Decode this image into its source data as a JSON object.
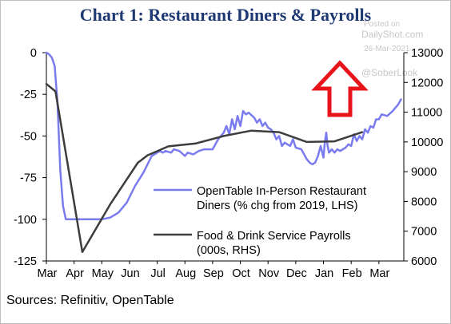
{
  "chart_title": "Chart 1: Restaurant Diners & Payrolls",
  "sources": "Sources: Refinitiv, OpenTable",
  "watermark": {
    "posted_on": "Posted on",
    "site": "DailyShot.com",
    "date": "26-Mar-2021",
    "handle": "@SoberLook"
  },
  "arrow_color": "#e8141b",
  "chart_data": {
    "type": "line",
    "x_ticks": [
      "Mar",
      "Apr",
      "May",
      "Jun",
      "Jul",
      "Aug",
      "Sep",
      "Oct",
      "Nov",
      "Dec",
      "Jan",
      "Feb",
      "Mar"
    ],
    "y_left": {
      "range": [
        -125,
        0
      ],
      "ticks": [
        0,
        -25,
        -50,
        -75,
        -100,
        -125
      ]
    },
    "y_right": {
      "range": [
        6000,
        13000
      ],
      "ticks": [
        6000,
        7000,
        8000,
        9000,
        10000,
        11000,
        12000,
        13000
      ]
    },
    "grid": false,
    "legend_position": "lower-right",
    "series": [
      {
        "name": "OpenTable In-Person Restaurant Diners (% chg from 2019, LHS)",
        "axis": "left",
        "color": "#7b7bf0",
        "points": [
          [
            0.0,
            0
          ],
          [
            0.1,
            -1
          ],
          [
            0.2,
            -3
          ],
          [
            0.3,
            -8
          ],
          [
            0.4,
            -30
          ],
          [
            0.5,
            -70
          ],
          [
            0.6,
            -92
          ],
          [
            0.7,
            -100
          ],
          [
            1.0,
            -100
          ],
          [
            1.5,
            -100
          ],
          [
            2.0,
            -100
          ],
          [
            2.3,
            -99
          ],
          [
            2.6,
            -96
          ],
          [
            2.9,
            -90
          ],
          [
            3.2,
            -80
          ],
          [
            3.5,
            -72
          ],
          [
            3.8,
            -62
          ],
          [
            4.0,
            -60
          ],
          [
            4.1,
            -59
          ],
          [
            4.2,
            -60
          ],
          [
            4.3,
            -59
          ],
          [
            4.5,
            -60
          ],
          [
            4.6,
            -58
          ],
          [
            4.8,
            -59
          ],
          [
            5.0,
            -62
          ],
          [
            5.1,
            -60
          ],
          [
            5.3,
            -61
          ],
          [
            5.5,
            -59
          ],
          [
            5.7,
            -58
          ],
          [
            6.0,
            -58
          ],
          [
            6.2,
            -52
          ],
          [
            6.4,
            -48
          ],
          [
            6.5,
            -44
          ],
          [
            6.6,
            -49
          ],
          [
            6.7,
            -40
          ],
          [
            6.8,
            -46
          ],
          [
            6.9,
            -38
          ],
          [
            7.0,
            -44
          ],
          [
            7.1,
            -35
          ],
          [
            7.2,
            -37
          ],
          [
            7.3,
            -36
          ],
          [
            7.5,
            -39
          ],
          [
            7.6,
            -42
          ],
          [
            7.7,
            -40
          ],
          [
            7.8,
            -44
          ],
          [
            7.9,
            -42
          ],
          [
            8.0,
            -45
          ],
          [
            8.1,
            -46
          ],
          [
            8.2,
            -48
          ],
          [
            8.3,
            -52
          ],
          [
            8.4,
            -50
          ],
          [
            8.5,
            -56
          ],
          [
            8.6,
            -54
          ],
          [
            8.8,
            -56
          ],
          [
            8.9,
            -52
          ],
          [
            9.0,
            -57
          ],
          [
            9.2,
            -58
          ],
          [
            9.3,
            -61
          ],
          [
            9.4,
            -64
          ],
          [
            9.5,
            -66
          ],
          [
            9.6,
            -67
          ],
          [
            9.7,
            -66
          ],
          [
            9.8,
            -62
          ],
          [
            9.9,
            -56
          ],
          [
            10.0,
            -63
          ],
          [
            10.05,
            -54
          ],
          [
            10.1,
            -48
          ],
          [
            10.15,
            -56
          ],
          [
            10.2,
            -60
          ],
          [
            10.3,
            -58
          ],
          [
            10.4,
            -60
          ],
          [
            10.5,
            -58
          ],
          [
            10.6,
            -59
          ],
          [
            10.8,
            -57
          ],
          [
            10.9,
            -55
          ],
          [
            11.0,
            -56
          ],
          [
            11.1,
            -49
          ],
          [
            11.2,
            -53
          ],
          [
            11.3,
            -50
          ],
          [
            11.4,
            -52
          ],
          [
            11.5,
            -46
          ],
          [
            11.6,
            -48
          ],
          [
            11.7,
            -44
          ],
          [
            11.8,
            -45
          ],
          [
            11.9,
            -40
          ],
          [
            12.0,
            -40
          ],
          [
            12.1,
            -37
          ],
          [
            12.3,
            -38
          ],
          [
            12.5,
            -35
          ],
          [
            12.7,
            -31
          ],
          [
            12.8,
            -28
          ]
        ]
      },
      {
        "name": "Food & Drink Service Payrolls (000s, RHS)",
        "axis": "right",
        "color": "#3d3d3d",
        "points": [
          [
            0.0,
            11950
          ],
          [
            0.33,
            11700
          ],
          [
            1.3,
            6300
          ],
          [
            2.3,
            7900
          ],
          [
            3.3,
            9300
          ],
          [
            3.65,
            9550
          ],
          [
            4.4,
            9850
          ],
          [
            5.4,
            9950
          ],
          [
            6.4,
            10200
          ],
          [
            7.4,
            10380
          ],
          [
            8.4,
            10330
          ],
          [
            9.4,
            10000
          ],
          [
            10.4,
            10020
          ],
          [
            11.4,
            10330
          ]
        ]
      }
    ]
  }
}
